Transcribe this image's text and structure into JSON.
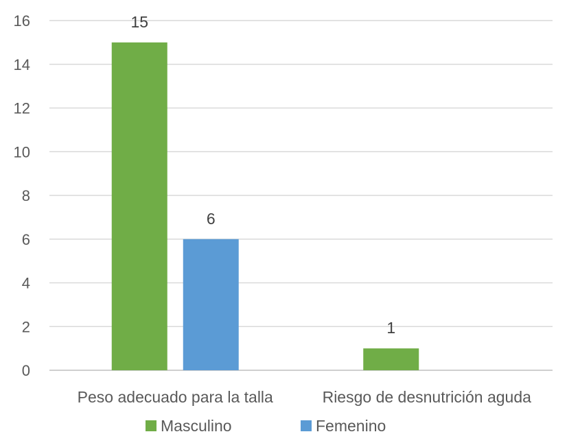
{
  "chart_data": {
    "type": "bar",
    "categories": [
      "Peso adecuado para la talla",
      "Riesgo de desnutrición aguda"
    ],
    "series": [
      {
        "name": "Masculino",
        "values": [
          15,
          1
        ],
        "color": "#70ad47"
      },
      {
        "name": "Femenino",
        "values": [
          6,
          0
        ],
        "color": "#5b9bd5"
      }
    ],
    "data_labels": [
      [
        "15",
        "1"
      ],
      [
        "6",
        ""
      ]
    ],
    "title": "",
    "xlabel": "",
    "ylabel": "",
    "ylim": [
      0,
      16
    ],
    "yticks": [
      0,
      2,
      4,
      6,
      8,
      10,
      12,
      14,
      16
    ],
    "grid": true,
    "legend": "bottom"
  }
}
